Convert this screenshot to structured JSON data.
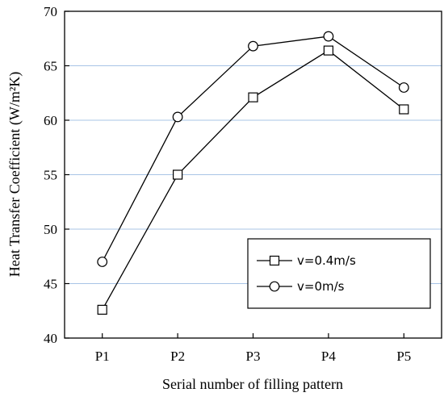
{
  "chart_data": {
    "type": "line",
    "categories": [
      "P1",
      "P2",
      "P3",
      "P4",
      "P5"
    ],
    "series": [
      {
        "name": "v=0.4m/s",
        "marker": "square",
        "values": [
          42.6,
          55.0,
          62.1,
          66.4,
          61.0
        ]
      },
      {
        "name": "v=0m/s",
        "marker": "circle",
        "values": [
          47.0,
          60.3,
          66.8,
          67.7,
          63.0
        ]
      }
    ],
    "xlabel": "Serial number of filling pattern",
    "ylabel": "Heat Transfer Coefficient (W/m²K)",
    "ylim": [
      40,
      70
    ],
    "yticks": [
      "40",
      "45",
      "50",
      "55",
      "60",
      "65",
      "70"
    ],
    "grid": "horizontal",
    "grid_color": "#a8c4e6",
    "legend_position": "bottom-right"
  }
}
